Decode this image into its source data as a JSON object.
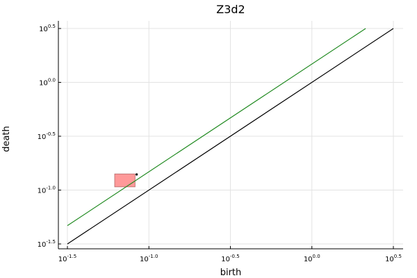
{
  "chart_data": {
    "type": "line",
    "title": "Z3d2",
    "xlabel": "birth",
    "ylabel": "death",
    "xscale": "log10",
    "yscale": "log10",
    "xlim": [
      -1.5,
      0.5
    ],
    "ylim": [
      -1.5,
      0.5
    ],
    "xticks": [
      {
        "base": "10",
        "exp": "-1.5"
      },
      {
        "base": "10",
        "exp": "-1.0"
      },
      {
        "base": "10",
        "exp": "-0.5"
      },
      {
        "base": "10",
        "exp": "0.0"
      },
      {
        "base": "10",
        "exp": "0.5"
      }
    ],
    "yticks": [
      {
        "base": "10",
        "exp": "-1.5"
      },
      {
        "base": "10",
        "exp": "-1.0"
      },
      {
        "base": "10",
        "exp": "-0.5"
      },
      {
        "base": "10",
        "exp": "0.0"
      },
      {
        "base": "10",
        "exp": "0.5"
      }
    ],
    "grid": true,
    "legend": "none",
    "series": [
      {
        "kind": "line",
        "color": "#000000",
        "x": [
          -1.5,
          0.5
        ],
        "y": [
          -1.5,
          0.5
        ]
      },
      {
        "kind": "line",
        "color": "#228b22",
        "x": [
          -1.5,
          0.33
        ],
        "y": [
          -1.33,
          0.5
        ]
      },
      {
        "kind": "point",
        "color": "#000000",
        "x": [
          -1.075
        ],
        "y": [
          -0.855
        ]
      }
    ],
    "highlight_region": {
      "color": "#ff9999",
      "x": [
        -1.21,
        -1.085
      ],
      "y": [
        -0.97,
        -0.85
      ]
    }
  }
}
